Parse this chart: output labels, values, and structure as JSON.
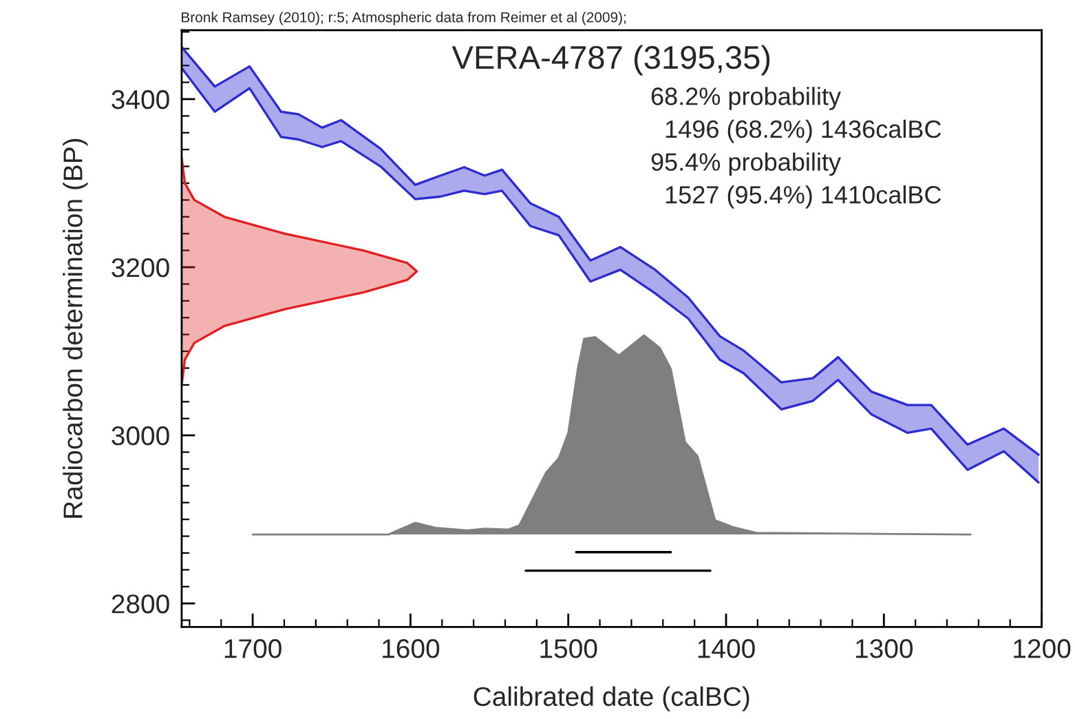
{
  "chart_data": {
    "type": "line",
    "title": "VERA-4787 (3195,35)",
    "xlabel": "Calibrated date (calBC)",
    "ylabel": "Radiocarbon determination (BP)",
    "annotations": [
      "Bronk Ramsey (2010); r:5; Atmospheric data from Reimer et al (2009);",
      "68.2% probability",
      "  1496 (68.2%) 1436calBC",
      "95.4% probability",
      "  1527 (95.4%) 1410calBC"
    ],
    "xlim": [
      1745,
      1200
    ],
    "ylim": [
      2772,
      3482
    ],
    "xticks": [
      {
        "value": 1740,
        "label": null
      },
      {
        "value": 1720,
        "label": null
      },
      1700,
      {
        "value": 1680,
        "label": null
      },
      {
        "value": 1660,
        "label": null
      },
      {
        "value": 1640,
        "label": null
      },
      {
        "value": 1620,
        "label": null
      },
      1600,
      {
        "value": 1580,
        "label": null
      },
      {
        "value": 1560,
        "label": null
      },
      {
        "value": 1540,
        "label": null
      },
      {
        "value": 1520,
        "label": null
      },
      1500,
      {
        "value": 1480,
        "label": null
      },
      {
        "value": 1460,
        "label": null
      },
      {
        "value": 1440,
        "label": null
      },
      {
        "value": 1420,
        "label": null
      },
      1400,
      {
        "value": 1380,
        "label": null
      },
      {
        "value": 1360,
        "label": null
      },
      {
        "value": 1340,
        "label": null
      },
      {
        "value": 1320,
        "label": null
      },
      1300,
      {
        "value": 1280,
        "label": null
      },
      {
        "value": 1260,
        "label": null
      },
      {
        "value": 1240,
        "label": null
      },
      {
        "value": 1220,
        "label": null
      },
      1200
    ],
    "yticks": [
      {
        "value": 2780,
        "label": null
      },
      2800,
      {
        "value": 2820,
        "label": null
      },
      {
        "value": 2840,
        "label": null
      },
      {
        "value": 2860,
        "label": null
      },
      {
        "value": 2880,
        "label": null
      },
      {
        "value": 2900,
        "label": null
      },
      {
        "value": 2920,
        "label": null
      },
      {
        "value": 2940,
        "label": null
      },
      {
        "value": 2960,
        "label": null
      },
      {
        "value": 2980,
        "label": null
      },
      3000,
      {
        "value": 3020,
        "label": null
      },
      {
        "value": 3040,
        "label": null
      },
      {
        "value": 3060,
        "label": null
      },
      {
        "value": 3080,
        "label": null
      },
      {
        "value": 3100,
        "label": null
      },
      {
        "value": 3120,
        "label": null
      },
      {
        "value": 3140,
        "label": null
      },
      {
        "value": 3160,
        "label": null
      },
      {
        "value": 3180,
        "label": null
      },
      3200,
      {
        "value": 3220,
        "label": null
      },
      {
        "value": 3240,
        "label": null
      },
      {
        "value": 3260,
        "label": null
      },
      {
        "value": 3280,
        "label": null
      },
      {
        "value": 3300,
        "label": null
      },
      {
        "value": 3320,
        "label": null
      },
      {
        "value": 3340,
        "label": null
      },
      {
        "value": 3360,
        "label": null
      },
      {
        "value": 3380,
        "label": null
      },
      3400,
      {
        "value": 3420,
        "label": null
      },
      {
        "value": 3440,
        "label": null
      },
      {
        "value": 3460,
        "label": null
      },
      {
        "value": 3480,
        "label": null
      }
    ],
    "grid": false,
    "legend": false,
    "series": [
      {
        "type": "line",
        "color": "#2b2bd0",
        "x": [
          1745,
          1724,
          1702,
          1682,
          1671,
          1656,
          1644,
          1619,
          1597,
          1581,
          1566,
          1553,
          1542,
          1524,
          1506,
          1486,
          1467,
          1445,
          1424,
          1404,
          1389,
          1365,
          1345,
          1329,
          1308,
          1285,
          1270,
          1247,
          1224,
          1202
        ],
        "values": [
          3462,
          3415,
          3439,
          3385,
          3382,
          3366,
          3375,
          3341,
          3298,
          3309,
          3319,
          3309,
          3316,
          3276,
          3260,
          3208,
          3224,
          3197,
          3164,
          3118,
          3101,
          3063,
          3068,
          3093,
          3052,
          3036,
          3036,
          2989,
          3008,
          2977
        ],
        "lower": [
          3437,
          3385,
          3413,
          3355,
          3352,
          3343,
          3350,
          3320,
          3281,
          3284,
          3291,
          3287,
          3291,
          3249,
          3238,
          3183,
          3197,
          3169,
          3139,
          3090,
          3074,
          3031,
          3041,
          3066,
          3025,
          3003,
          3008,
          2959,
          2981,
          2944
        ],
        "upper": [
          3462,
          3415,
          3439,
          3385,
          3382,
          3366,
          3375,
          3341,
          3298,
          3309,
          3319,
          3309,
          3316,
          3276,
          3260,
          3208,
          3224,
          3197,
          3164,
          3118,
          3101,
          3063,
          3068,
          3093,
          3052,
          3036,
          3036,
          2989,
          3008,
          2977
        ]
      },
      {
        "type": "line",
        "color": "#2b2bd0",
        "x": [
          1745,
          1724,
          1702,
          1682,
          1671,
          1656,
          1644,
          1619,
          1597,
          1581,
          1566,
          1553,
          1542,
          1524,
          1506,
          1486,
          1467,
          1445,
          1424,
          1404,
          1389,
          1365,
          1345,
          1329,
          1308,
          1285,
          1270,
          1247,
          1224,
          1202
        ],
        "values": [
          3437,
          3385,
          3413,
          3355,
          3352,
          3343,
          3350,
          3320,
          3281,
          3284,
          3291,
          3287,
          3291,
          3249,
          3238,
          3183,
          3197,
          3169,
          3139,
          3090,
          3074,
          3031,
          3041,
          3066,
          3025,
          3003,
          3008,
          2959,
          2981,
          2944
        ]
      },
      {
        "type": "area",
        "color": "#e02020",
        "x": [
          1745,
          1743,
          1737,
          1718,
          1680,
          1630,
          1602,
          1596,
          1602,
          1630,
          1680,
          1718,
          1737,
          1743,
          1745
        ],
        "values": [
          3060,
          3090,
          3110,
          3130,
          3150,
          3170,
          3185,
          3195,
          3205,
          3220,
          3240,
          3260,
          3280,
          3300,
          3330
        ]
      },
      {
        "type": "area",
        "color": "#7f7f7f",
        "x": [
          1700,
          1614,
          1597,
          1584,
          1564,
          1553,
          1538,
          1531,
          1514,
          1506,
          1500,
          1494,
          1490,
          1483,
          1468,
          1452,
          1442,
          1435,
          1426,
          1418,
          1407,
          1396,
          1381,
          1245
        ],
        "values": [
          2882,
          2882,
          2896,
          2890,
          2887,
          2889,
          2888,
          2893,
          2956,
          2973,
          3003,
          3079,
          3115,
          3117,
          3095,
          3119,
          3104,
          3079,
          2992,
          2975,
          2899,
          2891,
          2884,
          2882
        ]
      },
      {
        "type": "line",
        "color": "#000000",
        "x": [
          1495,
          1435
        ],
        "values": [
          2861,
          2861
        ]
      },
      {
        "type": "line",
        "color": "#000000",
        "x": [
          1527,
          1410
        ],
        "values": [
          2839,
          2839
        ]
      }
    ]
  }
}
